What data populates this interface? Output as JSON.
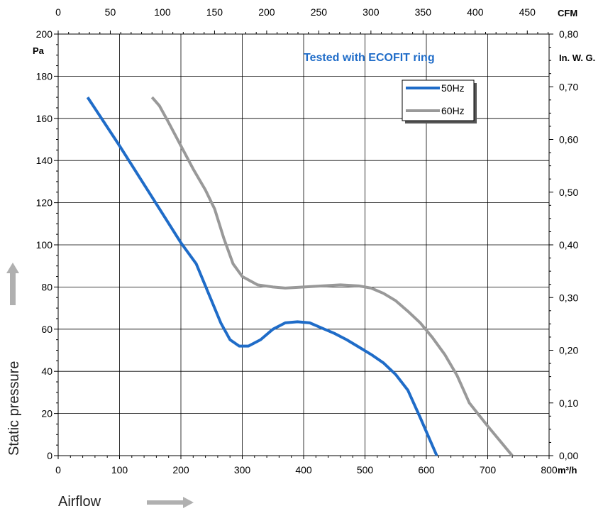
{
  "chart_data": {
    "type": "line",
    "title": "",
    "annotation": "Tested with ECOFIT ring",
    "xlabel": "Airflow",
    "ylabel": "Static pressure",
    "x_unit": "m³/h",
    "x2_unit": "CFM",
    "y_unit": "Pa",
    "y2_unit": "In. W. G.",
    "xlim": [
      0,
      800
    ],
    "ylim": [
      0,
      200
    ],
    "x2lim": [
      0,
      470.9
    ],
    "y2lim": [
      0,
      0.8
    ],
    "x_ticks": [
      0,
      100,
      200,
      300,
      400,
      500,
      600,
      700,
      800
    ],
    "y_ticks": [
      0,
      20,
      40,
      60,
      80,
      100,
      120,
      140,
      160,
      180,
      200
    ],
    "x2_ticks": [
      0,
      50,
      100,
      150,
      200,
      250,
      300,
      350,
      400,
      450
    ],
    "x2_tick_labels": [
      "0",
      "50",
      "100",
      "150",
      "200",
      "250",
      "300",
      "350",
      "400",
      "450"
    ],
    "y2_ticks": [
      0,
      0.1,
      0.2,
      0.3,
      0.4,
      0.5,
      0.6,
      0.7,
      0.8
    ],
    "y2_tick_labels": [
      "0,00",
      "0,10",
      "0,20",
      "0,30",
      "0,40",
      "0,50",
      "0,60",
      "0,70",
      "0,80"
    ],
    "grid": true,
    "legend_position": "top-right",
    "series": [
      {
        "name": "50Hz",
        "color": "#1f6cc8",
        "points": [
          [
            48,
            170
          ],
          [
            100,
            147
          ],
          [
            150,
            124
          ],
          [
            200,
            101
          ],
          [
            225,
            91
          ],
          [
            245,
            77
          ],
          [
            265,
            63
          ],
          [
            280,
            55
          ],
          [
            295,
            52
          ],
          [
            310,
            52
          ],
          [
            330,
            55
          ],
          [
            350,
            60
          ],
          [
            370,
            63
          ],
          [
            390,
            63.5
          ],
          [
            410,
            63
          ],
          [
            430,
            60.5
          ],
          [
            450,
            58
          ],
          [
            470,
            55
          ],
          [
            490,
            51.5
          ],
          [
            510,
            48
          ],
          [
            530,
            44
          ],
          [
            550,
            38.5
          ],
          [
            570,
            31
          ],
          [
            590,
            18
          ],
          [
            605,
            8
          ],
          [
            617,
            0
          ]
        ]
      },
      {
        "name": "60Hz",
        "color": "#999999",
        "points": [
          [
            153,
            170
          ],
          [
            165,
            166
          ],
          [
            180,
            158
          ],
          [
            200,
            147
          ],
          [
            220,
            136
          ],
          [
            240,
            126
          ],
          [
            255,
            117
          ],
          [
            270,
            103
          ],
          [
            285,
            91
          ],
          [
            300,
            85
          ],
          [
            325,
            81
          ],
          [
            350,
            80
          ],
          [
            370,
            79.5
          ],
          [
            400,
            80
          ],
          [
            430,
            80.5
          ],
          [
            460,
            81
          ],
          [
            490,
            80.5
          ],
          [
            510,
            79.5
          ],
          [
            530,
            77
          ],
          [
            550,
            73.5
          ],
          [
            570,
            68.5
          ],
          [
            590,
            63
          ],
          [
            610,
            56
          ],
          [
            630,
            48
          ],
          [
            650,
            38
          ],
          [
            670,
            25
          ],
          [
            700,
            14
          ],
          [
            740,
            0
          ]
        ]
      }
    ]
  }
}
